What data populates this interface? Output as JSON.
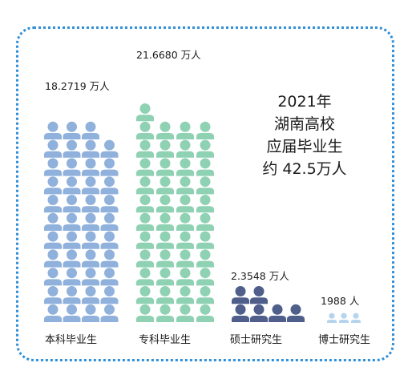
{
  "chart_data": {
    "type": "pictogram",
    "title_lines": [
      "2021年",
      "湖南高校",
      "应届毕业生",
      "约 42.5万人"
    ],
    "unit": "万人",
    "categories": [
      "本科毕业生",
      "专科毕业生",
      "硕士研究生",
      "博士研究生"
    ],
    "values": [
      18.2719,
      21.668,
      2.3548,
      0.1988
    ],
    "value_labels": [
      "18.2719 万人",
      "21.6680 万人",
      "2.3548 万人",
      "1988 人"
    ],
    "series_colors": [
      "#8fb1dc",
      "#8fd1b3",
      "#4f5e8a",
      "#b7d4ee"
    ]
  }
}
